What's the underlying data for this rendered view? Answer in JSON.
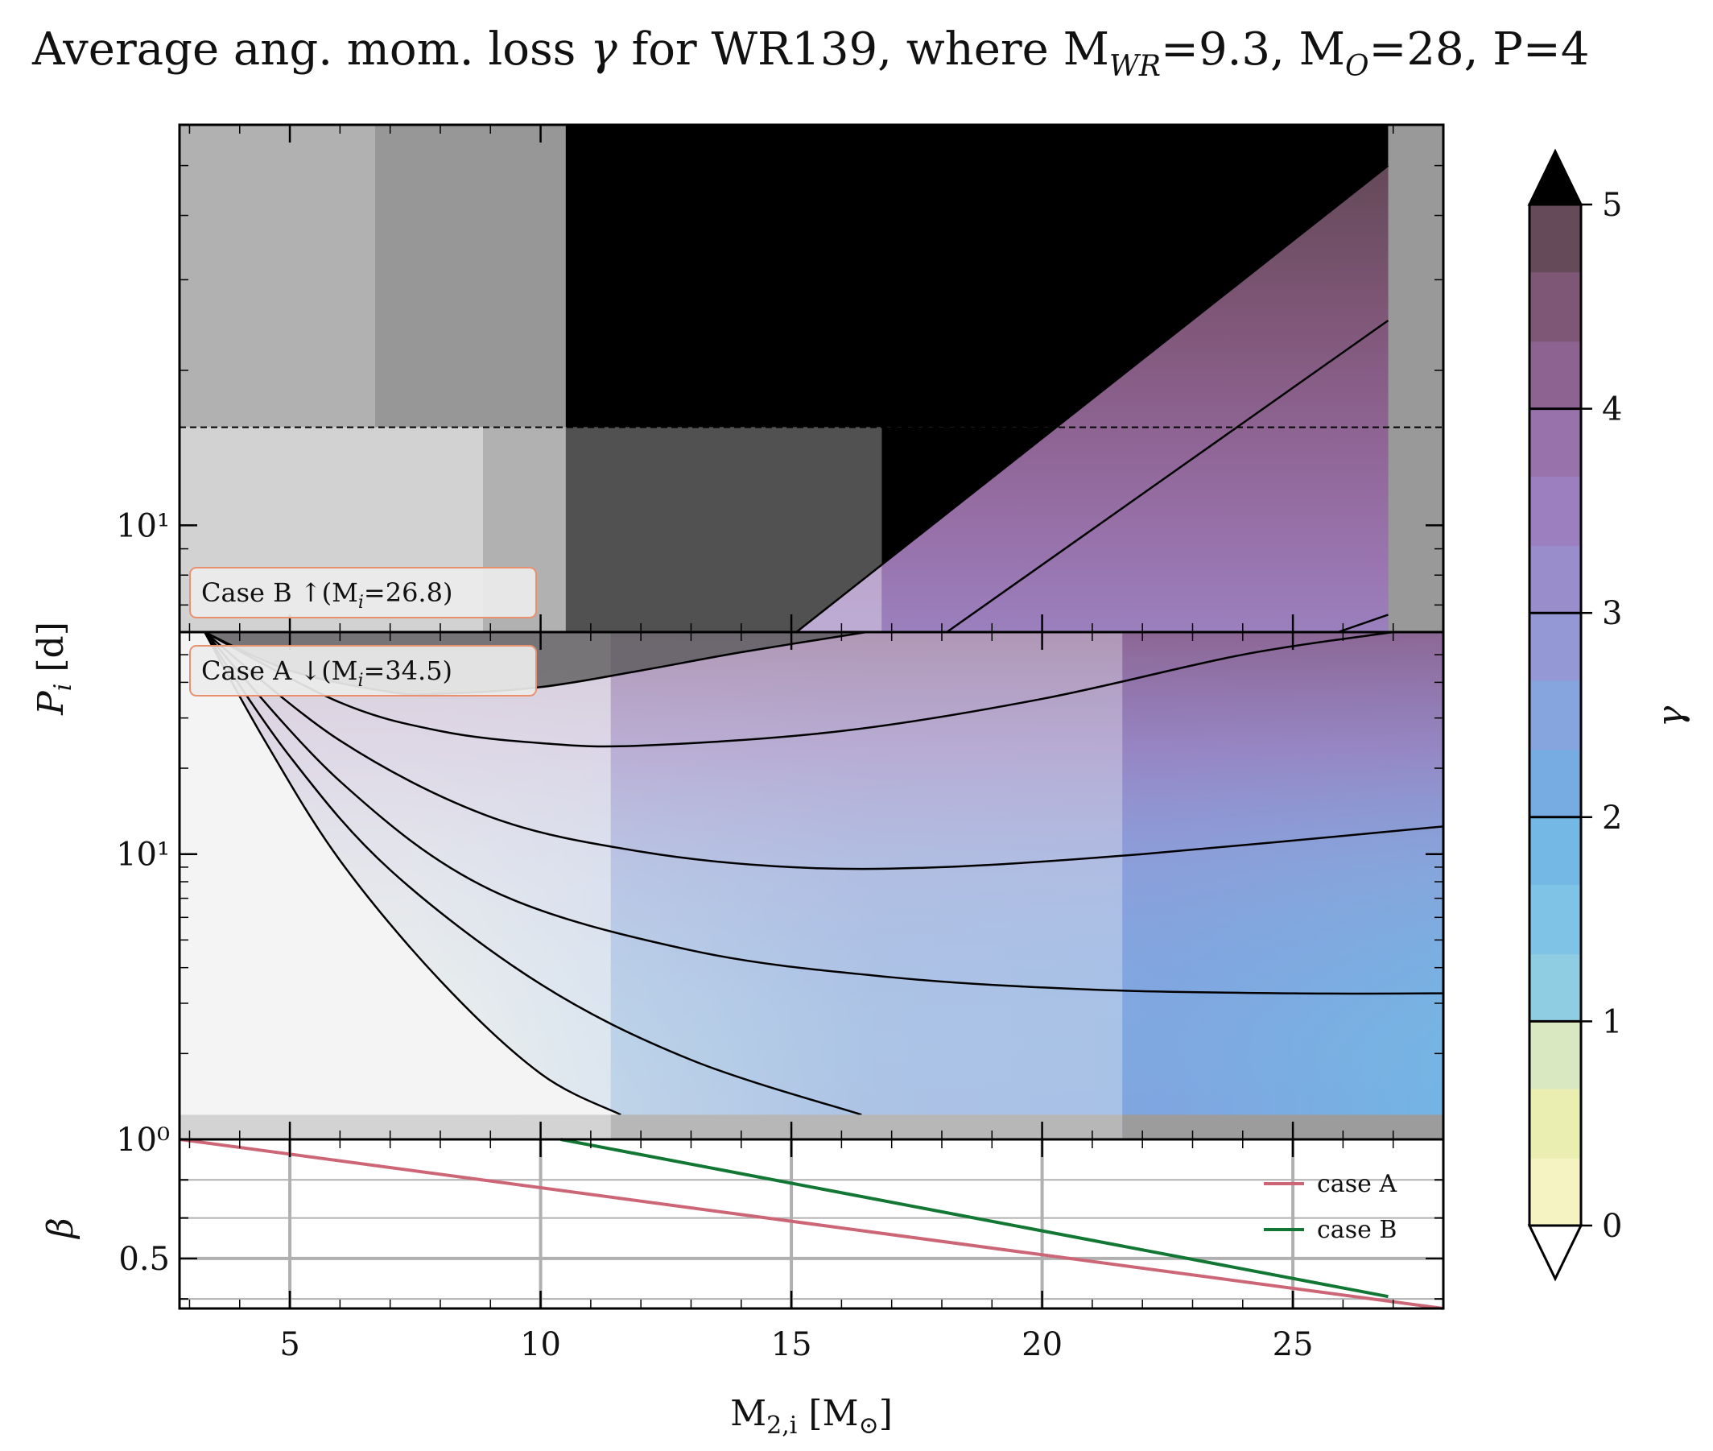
{
  "title": "Average ang. mom. loss γ for WR139, where M_WR=9.3, M_O=28, P=4",
  "title_parts": {
    "prefix": "Average ang. mom. loss ",
    "gamma": "γ",
    "middle": " for WR139, where M",
    "sub_wr": "WR",
    "eq_wr": "=9.3, M",
    "sub_o": "O",
    "eq_o": "=28, P=4"
  },
  "axes": {
    "x_label_main": "M",
    "x_label_sub": "2,i",
    "x_label_unit": " [M",
    "x_label_sun": "⊙",
    "x_label_close": "]",
    "y_label_main": "P",
    "y_label_sub": "i",
    "y_label_unit": " [d]",
    "beta_label": "β",
    "cbar_label": "γ"
  },
  "annotations": {
    "case_b": "Case B ↑(M",
    "case_b_sub": "i",
    "case_b_val": "=26.8)",
    "case_a": "Case A ↓(M",
    "case_a_sub": "i",
    "case_a_val": "=34.5)"
  },
  "chart_data": [
    {
      "id": "caseB_panel",
      "type": "contour",
      "xlim": [
        2.8,
        28
      ],
      "ylim": [
        6.2,
        60
      ],
      "yscale": "log",
      "x_ticks": [
        5,
        10,
        15,
        20,
        25
      ],
      "y_tick_labels": [
        {
          "value": 10,
          "label": "10¹"
        }
      ],
      "dashed_hline": 15.5,
      "gray_regions": [
        {
          "x": [
            2.8,
            6.7
          ],
          "y": [
            15.5,
            60
          ],
          "color": "#b1b1b1"
        },
        {
          "x": [
            6.7,
            10.5
          ],
          "y": [
            15.5,
            60
          ],
          "color": "#979797"
        },
        {
          "x": [
            10.5,
            26.9
          ],
          "y": [
            15.5,
            60
          ],
          "color": "#000000"
        },
        {
          "x": [
            2.8,
            8.85
          ],
          "y": [
            6.2,
            15.5
          ],
          "color": "#d2d2d2"
        },
        {
          "x": [
            8.85,
            10.5
          ],
          "y": [
            6.2,
            15.5
          ],
          "color": "#b1b1b1"
        },
        {
          "x": [
            10.5,
            16.8
          ],
          "y": [
            6.2,
            15.5
          ],
          "color": "#515151"
        },
        {
          "x": [
            16.8,
            26.9
          ],
          "y": [
            6.2,
            15.5
          ],
          "color": "#000000"
        },
        {
          "x": [
            26.9,
            28
          ],
          "y": [
            6.2,
            60
          ],
          "color": "#999999"
        }
      ],
      "wedge_boundary": {
        "x": [
          15.1,
          26.9
        ],
        "y": [
          6.2,
          50
        ]
      },
      "contour_lines": [
        {
          "gamma": 4,
          "x": [
            18.1,
            26.9
          ],
          "y": [
            6.2,
            25
          ]
        },
        {
          "gamma": 3,
          "x": [
            25.9,
            26.9
          ],
          "y": [
            6.2,
            6.7
          ]
        }
      ]
    },
    {
      "id": "caseA_panel",
      "type": "contour",
      "xlim": [
        2.8,
        28
      ],
      "ylim": [
        1.0,
        60
      ],
      "yscale": "log",
      "x_ticks": [
        5,
        10,
        15,
        20,
        25
      ],
      "y_tick_labels": [
        {
          "value": 1,
          "label": "10⁰"
        },
        {
          "value": 10,
          "label": "10¹"
        }
      ],
      "bottom_band_y": [
        1.0,
        1.22
      ],
      "bottom_band": [
        {
          "x": [
            2.8,
            11.4
          ],
          "color": "#d3d3d3"
        },
        {
          "x": [
            11.4,
            21.6
          ],
          "color": "#b7b7b7"
        },
        {
          "x": [
            21.6,
            28
          ],
          "color": "#9c9c9c"
        }
      ],
      "overlay_regions": [
        {
          "x": [
            2.8,
            11.4
          ],
          "opacity": 0.72
        },
        {
          "x": [
            11.4,
            21.6
          ],
          "opacity": 0.35
        },
        {
          "x": [
            21.6,
            28
          ],
          "opacity": 0.0
        }
      ],
      "contour_lines": [
        {
          "gamma": 0,
          "x": [
            3.3,
            4.5,
            6.0,
            8.0,
            10.0,
            11.6
          ],
          "y": [
            60,
            25,
            9.5,
            3.6,
            1.7,
            1.22
          ]
        },
        {
          "gamma": 1,
          "x": [
            3.3,
            5.0,
            7.0,
            10.0,
            13.0,
            16.4
          ],
          "y": [
            60,
            22,
            8.8,
            3.5,
            1.9,
            1.22
          ]
        },
        {
          "gamma": 2,
          "x": [
            3.3,
            6.0,
            9.0,
            13.0,
            17.0,
            21.0,
            25.0,
            28.0
          ],
          "y": [
            60,
            18,
            7.5,
            4.6,
            3.7,
            3.35,
            3.25,
            3.25
          ]
        },
        {
          "gamma": 3,
          "x": [
            3.3,
            6.0,
            9.0,
            12.0,
            15.0,
            18.0,
            22.0,
            28.0
          ],
          "y": [
            60,
            25,
            13.5,
            10.2,
            9.0,
            9.0,
            10.0,
            12.5
          ]
        },
        {
          "gamma": 4,
          "x": [
            3.3,
            6.0,
            8.0,
            10.0,
            12.0,
            16.0,
            20.0,
            24.0,
            27.0
          ],
          "y": [
            60,
            34,
            27,
            24.5,
            24.0,
            27.0,
            35,
            50,
            60
          ]
        },
        {
          "gamma": 5,
          "x": [
            3.3,
            5.0,
            7.0,
            8.0,
            10.0,
            12.0,
            14.0,
            16.5
          ],
          "y": [
            60,
            44,
            37,
            36.5,
            38.5,
            44,
            51,
            60
          ]
        }
      ]
    },
    {
      "id": "beta_panel",
      "type": "line",
      "xlim": [
        2.8,
        28
      ],
      "ylim": [
        0.29,
        1.0
      ],
      "x_ticks": [
        5,
        10,
        15,
        20,
        25
      ],
      "x_tick_labels": [
        "5",
        "10",
        "15",
        "20",
        "25"
      ],
      "y_ticks": [
        0.33,
        0.5,
        0.67,
        0.83
      ],
      "y_tick_labels": [
        {
          "value": 0.5,
          "label": "0.5"
        }
      ],
      "series": [
        {
          "name": "case A",
          "color": "#cc6677",
          "x": [
            2.8,
            28
          ],
          "y": [
            1.0,
            0.29
          ]
        },
        {
          "name": "case B",
          "color": "#117733",
          "x": [
            10.4,
            26.9
          ],
          "y": [
            1.0,
            0.34
          ]
        }
      ],
      "legend_position": "right"
    },
    {
      "id": "colorbar",
      "type": "colorbar",
      "label": "γ",
      "range": [
        0,
        5
      ],
      "ticks": [
        0,
        1,
        2,
        3,
        4,
        5
      ],
      "extend": "both",
      "levels": [
        {
          "from": 0.0,
          "to": 0.33,
          "color": "#f5f3c1"
        },
        {
          "from": 0.33,
          "to": 0.67,
          "color": "#eaefb1"
        },
        {
          "from": 0.67,
          "to": 1.0,
          "color": "#dae8c2"
        },
        {
          "from": 1.0,
          "to": 1.33,
          "color": "#8fcde3"
        },
        {
          "from": 1.33,
          "to": 1.67,
          "color": "#7fc3e6"
        },
        {
          "from": 1.67,
          "to": 2.0,
          "color": "#74b8e6"
        },
        {
          "from": 2.0,
          "to": 2.33,
          "color": "#76ace2"
        },
        {
          "from": 2.33,
          "to": 2.67,
          "color": "#86a5de"
        },
        {
          "from": 2.67,
          "to": 3.0,
          "color": "#9499d5"
        },
        {
          "from": 3.0,
          "to": 3.33,
          "color": "#9a8dcc"
        },
        {
          "from": 3.33,
          "to": 3.67,
          "color": "#9b7fbe"
        },
        {
          "from": 3.67,
          "to": 4.0,
          "color": "#9872ab"
        },
        {
          "from": 4.0,
          "to": 4.33,
          "color": "#8d6391"
        },
        {
          "from": 4.33,
          "to": 4.67,
          "color": "#7e5676"
        },
        {
          "from": 4.67,
          "to": 5.0,
          "color": "#654a5a"
        }
      ],
      "over_color": "#000000",
      "under_color": "#ffffff"
    }
  ]
}
